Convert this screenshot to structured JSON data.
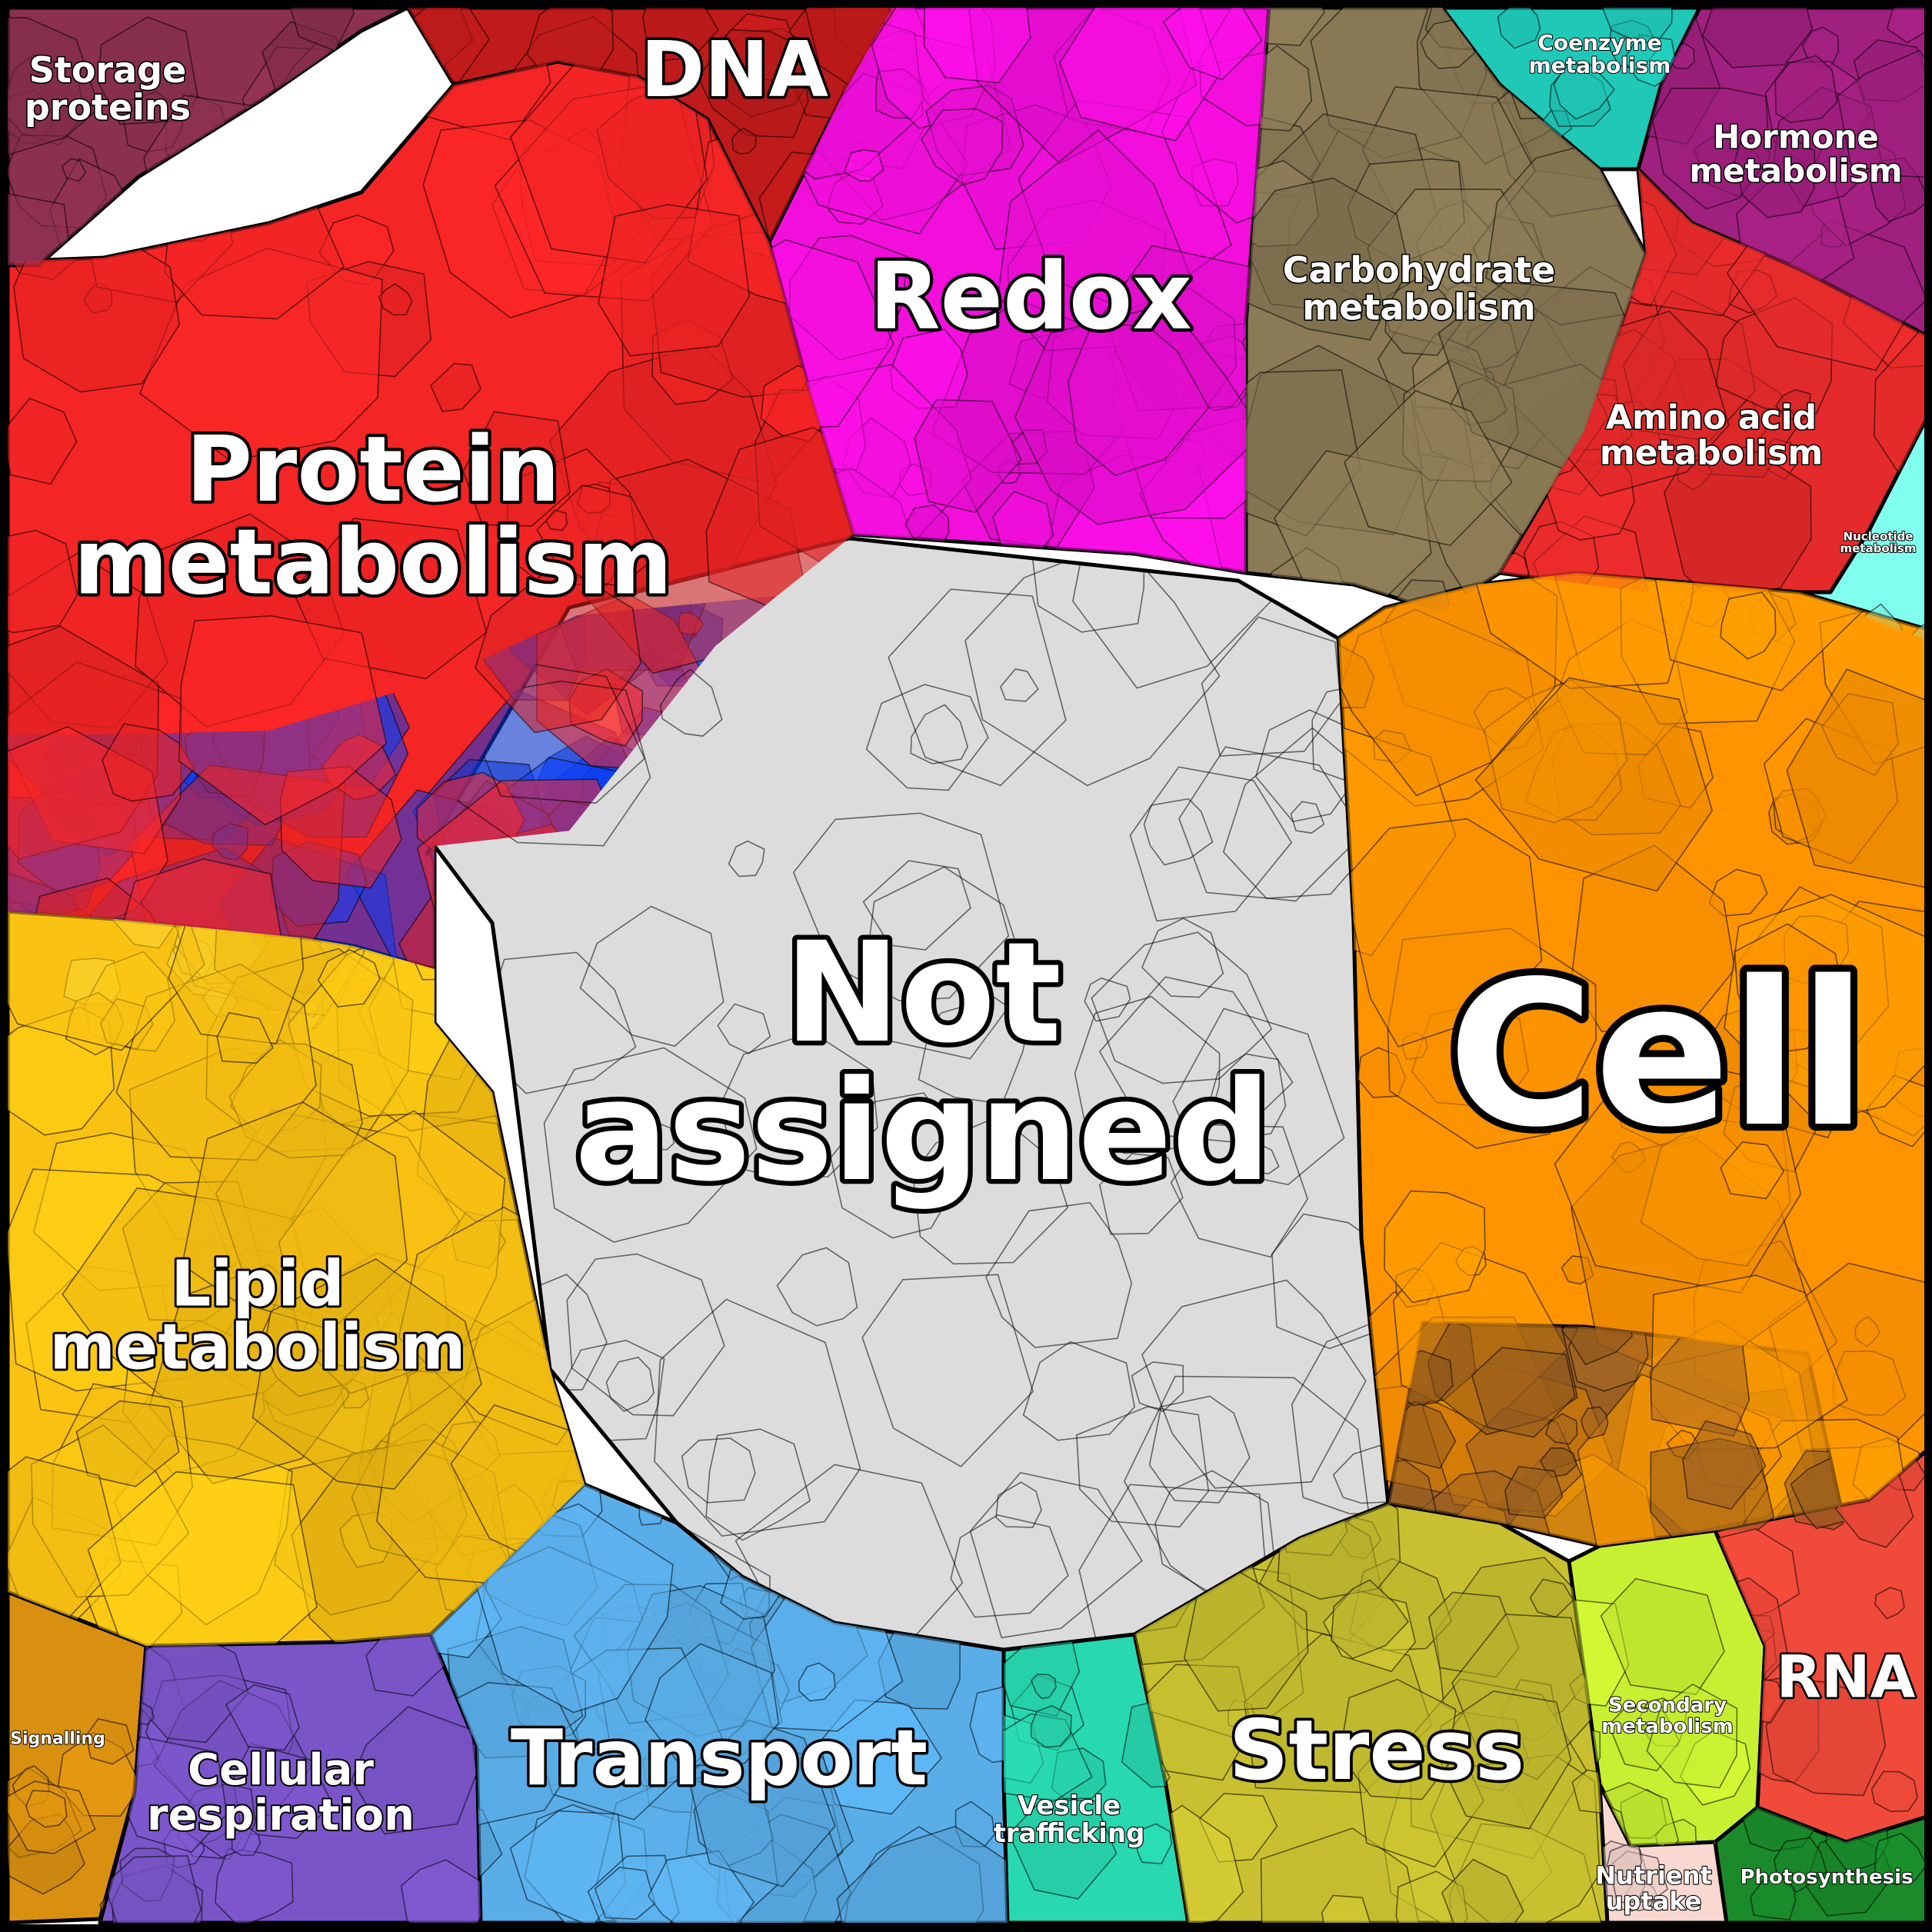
{
  "chart_data": {
    "type": "voronoi-treemap",
    "categories": [
      {
        "id": "not-assigned",
        "label_lines": [
          "Not",
          "assigned"
        ],
        "color": "#dcdcdc",
        "size": "largest"
      },
      {
        "id": "cell",
        "label_lines": [
          "Cell"
        ],
        "color": "#ff9400"
      },
      {
        "id": "protein-metabolism",
        "label_lines": [
          "Protein",
          "metabolism"
        ],
        "color": "#f42525"
      },
      {
        "id": "redox",
        "label_lines": [
          "Redox"
        ],
        "color": "#f20fdc"
      },
      {
        "id": "dna",
        "label_lines": [
          "DNA"
        ],
        "color": "#c01b1b"
      },
      {
        "id": "storage-proteins",
        "label_lines": [
          "Storage",
          "proteins"
        ],
        "color": "#8b3050"
      },
      {
        "id": "carbohydrate-metabolism",
        "label_lines": [
          "Carbohydrate",
          "metabolism"
        ],
        "color": "#8a7a55"
      },
      {
        "id": "coenzyme-metabolism",
        "label_lines": [
          "Coenzyme",
          "metabolism"
        ],
        "color": "#20c8b8"
      },
      {
        "id": "hormone-metabolism",
        "label_lines": [
          "Hormone",
          "metabolism"
        ],
        "color": "#a0207f"
      },
      {
        "id": "amino-acid-metabolism",
        "label_lines": [
          "Amino acid",
          "metabolism"
        ],
        "color": "#e42a2a"
      },
      {
        "id": "nucleotide-metabolism",
        "label_lines": [
          "Nucleotide",
          "metabolism"
        ],
        "color": "#80ffee"
      },
      {
        "id": "lipid-metabolism",
        "label_lines": [
          "Lipid",
          "metabolism"
        ],
        "color": "#f9c213"
      },
      {
        "id": "signalling",
        "label_lines": [
          "Signalling"
        ],
        "color": "#d99010"
      },
      {
        "id": "cellular-respiration",
        "label_lines": [
          "Cellular",
          "respiration"
        ],
        "color": "#7a55c8"
      },
      {
        "id": "transport",
        "label_lines": [
          "Transport"
        ],
        "color": "#5aaee8"
      },
      {
        "id": "vesicle-trafficking",
        "label_lines": [
          "Vesicle",
          "trafficking"
        ],
        "color": "#28d8b0"
      },
      {
        "id": "stress",
        "label_lines": [
          "Stress"
        ],
        "color": "#c8c030"
      },
      {
        "id": "secondary-metabolism",
        "label_lines": [
          "Secondary",
          "metabolism"
        ],
        "color": "#c8f032"
      },
      {
        "id": "rna",
        "label_lines": [
          "RNA"
        ],
        "color": "#f04a3a"
      },
      {
        "id": "nutrient-uptake",
        "label_lines": [
          "Nutrient",
          "uptake"
        ],
        "color": "#f8d8d0"
      },
      {
        "id": "photosynthesis",
        "label_lines": [
          "Photosynthesis"
        ],
        "color": "#1a8a2a"
      },
      {
        "id": "unlabeled-blue",
        "label_lines": [],
        "color": "#0a3cf0"
      },
      {
        "id": "unlabeled-yellow",
        "label_lines": [],
        "color": "#fff060"
      },
      {
        "id": "unlabeled-brown",
        "label_lines": [],
        "color": "#9a5f22"
      }
    ]
  }
}
